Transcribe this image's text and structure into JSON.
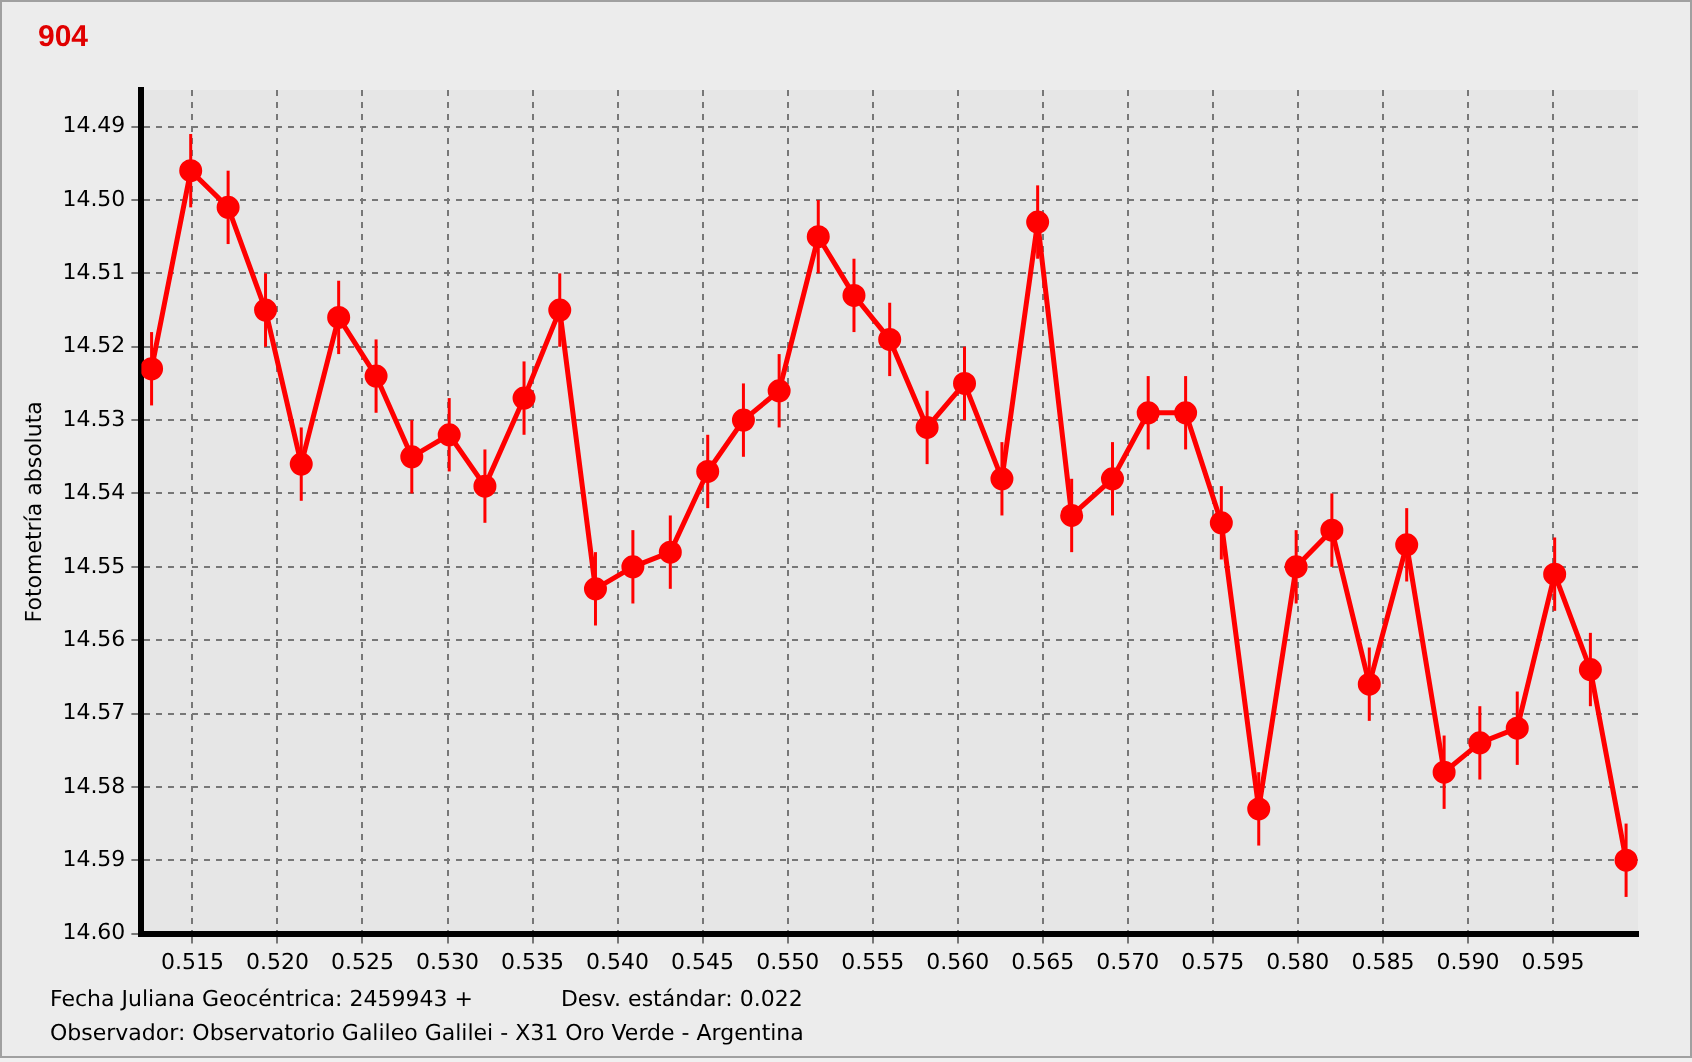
{
  "chart_data": {
    "type": "line",
    "title": "904",
    "ylabel": "Fotometría absoluta",
    "annotations": [
      "Fecha Juliana Geocéntrica: 2459943 +",
      "Desv. estándar: 0.022",
      "Observador: Observatorio Galileo Galilei - X31 Oro Verde - Argentina"
    ],
    "x": [
      0.5126,
      0.5149,
      0.5171,
      0.5193,
      0.5214,
      0.5236,
      0.5258,
      0.5279,
      0.5301,
      0.5322,
      0.5345,
      0.5366,
      0.5387,
      0.5409,
      0.5431,
      0.5453,
      0.5474,
      0.5495,
      0.5518,
      0.5539,
      0.556,
      0.5582,
      0.5604,
      0.5626,
      0.5647,
      0.5667,
      0.5691,
      0.5712,
      0.5734,
      0.5755,
      0.5777,
      0.5799,
      0.582,
      0.5842,
      0.5864,
      0.5886,
      0.5907,
      0.5929,
      0.5951,
      0.5972,
      0.5993
    ],
    "series": [
      {
        "color": "#ff0000",
        "values": [
          14.523,
          14.496,
          14.501,
          14.515,
          14.536,
          14.516,
          14.524,
          14.535,
          14.532,
          14.539,
          14.527,
          14.515,
          14.553,
          14.55,
          14.548,
          14.537,
          14.53,
          14.526,
          14.505,
          14.513,
          14.519,
          14.531,
          14.525,
          14.538,
          14.503,
          14.543,
          14.538,
          14.529,
          14.529,
          14.544,
          14.583,
          14.55,
          14.545,
          14.566,
          14.547,
          14.578,
          14.574,
          14.572,
          14.551,
          14.564,
          14.59
        ],
        "errors": [
          0.005,
          0.005,
          0.005,
          0.005,
          0.005,
          0.005,
          0.005,
          0.005,
          0.005,
          0.005,
          0.005,
          0.005,
          0.005,
          0.005,
          0.005,
          0.005,
          0.005,
          0.005,
          0.005,
          0.005,
          0.005,
          0.005,
          0.005,
          0.005,
          0.005,
          0.005,
          0.005,
          0.005,
          0.005,
          0.005,
          0.005,
          0.005,
          0.005,
          0.005,
          0.005,
          0.005,
          0.005,
          0.005,
          0.005,
          0.005,
          0.005
        ]
      }
    ],
    "xlim": [
      0.512,
      0.6
    ],
    "ylim": [
      14.6,
      14.485
    ],
    "xticks": [
      {
        "value": 0.515,
        "label": "0.515"
      },
      {
        "value": 0.52,
        "label": "0.520"
      },
      {
        "value": 0.525,
        "label": "0.525"
      },
      {
        "value": 0.53,
        "label": "0.530"
      },
      {
        "value": 0.535,
        "label": "0.535"
      },
      {
        "value": 0.54,
        "label": "0.540"
      },
      {
        "value": 0.545,
        "label": "0.545"
      },
      {
        "value": 0.55,
        "label": "0.550"
      },
      {
        "value": 0.555,
        "label": "0.555"
      },
      {
        "value": 0.56,
        "label": "0.560"
      },
      {
        "value": 0.565,
        "label": "0.565"
      },
      {
        "value": 0.57,
        "label": "0.570"
      },
      {
        "value": 0.575,
        "label": "0.575"
      },
      {
        "value": 0.58,
        "label": "0.580"
      },
      {
        "value": 0.585,
        "label": "0.585"
      },
      {
        "value": 0.59,
        "label": "0.590"
      },
      {
        "value": 0.595,
        "label": "0.595"
      }
    ],
    "yticks": [
      {
        "value": 14.49,
        "label": "14.49"
      },
      {
        "value": 14.5,
        "label": "14.50"
      },
      {
        "value": 14.51,
        "label": "14.51"
      },
      {
        "value": 14.52,
        "label": "14.52"
      },
      {
        "value": 14.53,
        "label": "14.53"
      },
      {
        "value": 14.54,
        "label": "14.54"
      },
      {
        "value": 14.55,
        "label": "14.55"
      },
      {
        "value": 14.56,
        "label": "14.56"
      },
      {
        "value": 14.57,
        "label": "14.57"
      },
      {
        "value": 14.58,
        "label": "14.58"
      },
      {
        "value": 14.59,
        "label": "14.59"
      },
      {
        "value": 14.6,
        "label": "14.60"
      }
    ],
    "grid": true,
    "legend": false,
    "marker": "circle",
    "line_style": "solid"
  }
}
